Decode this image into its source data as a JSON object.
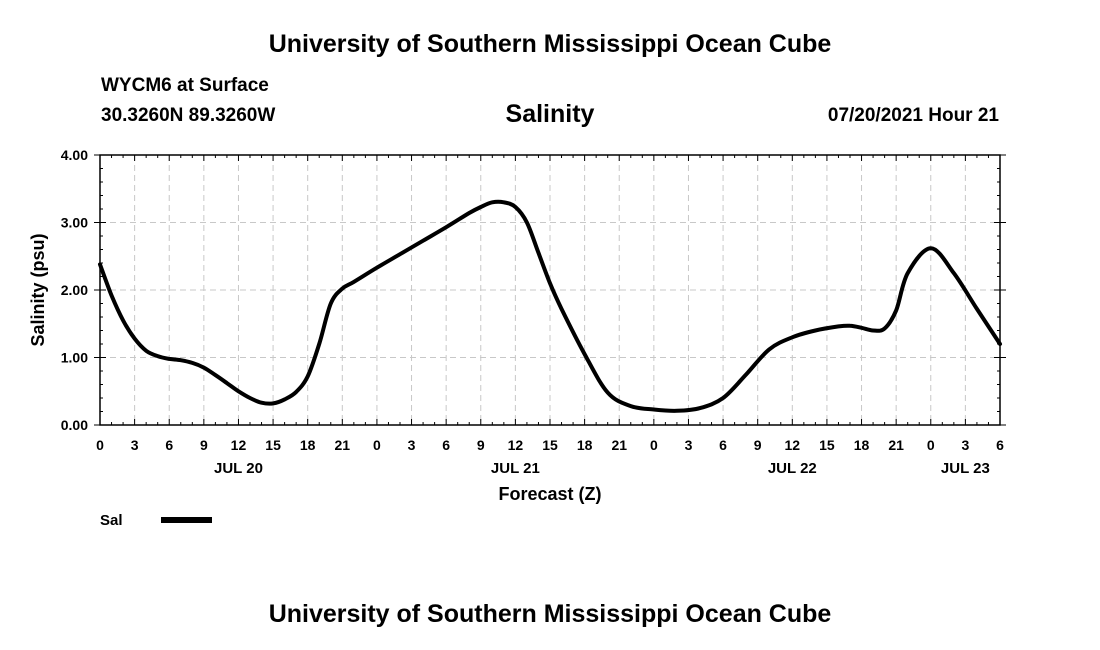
{
  "page": {
    "top_title": "University of Southern Mississippi Ocean Cube",
    "bottom_title": "University of Southern Mississippi Ocean Cube",
    "station": "WYCM6 at Surface",
    "coords": "30.3260N  89.3260W",
    "datetime": "07/20/2021 Hour 21"
  },
  "chart_data": {
    "type": "line",
    "title": "Salinity",
    "xlabel": "Forecast (Z)",
    "ylabel": "Salinity (psu)",
    "ylim": [
      0,
      4
    ],
    "y_ticks": [
      "0.00",
      "1.00",
      "2.00",
      "3.00",
      "4.00"
    ],
    "x_range_hours": [
      0,
      78
    ],
    "x_tick_labels": [
      "0",
      "3",
      "6",
      "9",
      "12",
      "15",
      "18",
      "21",
      "0",
      "3",
      "6",
      "9",
      "12",
      "15",
      "18",
      "21",
      "0",
      "3",
      "6",
      "9",
      "12",
      "15",
      "18",
      "21",
      "0",
      "3",
      "6"
    ],
    "date_labels": [
      {
        "label": "JUL 20",
        "hour": 12
      },
      {
        "label": "JUL 21",
        "hour": 36
      },
      {
        "label": "JUL 22",
        "hour": 60
      },
      {
        "label": "JUL 23",
        "hour": 75
      }
    ],
    "grid": true,
    "legend": [
      {
        "name": "Sal",
        "color": "#000000"
      }
    ],
    "series": [
      {
        "name": "Sal",
        "color": "#000000",
        "x": [
          0,
          1,
          2,
          3,
          4,
          5,
          6,
          7,
          8,
          9,
          10,
          11,
          12,
          13,
          14,
          15,
          16,
          17,
          18,
          19,
          20,
          21,
          22,
          24,
          26,
          28,
          30,
          32,
          33,
          34,
          35,
          36,
          37,
          38,
          39,
          40,
          42,
          44,
          46,
          48,
          50,
          52,
          54,
          56,
          58,
          60,
          62,
          64,
          65,
          66,
          67,
          68,
          69,
          70,
          72,
          74,
          76,
          78
        ],
        "values": [
          2.38,
          1.92,
          1.55,
          1.28,
          1.1,
          1.02,
          0.98,
          0.96,
          0.92,
          0.85,
          0.74,
          0.62,
          0.5,
          0.4,
          0.33,
          0.32,
          0.38,
          0.49,
          0.72,
          1.2,
          1.8,
          2.02,
          2.12,
          2.33,
          2.53,
          2.73,
          2.93,
          3.14,
          3.23,
          3.3,
          3.3,
          3.23,
          3.0,
          2.55,
          2.1,
          1.72,
          1.05,
          0.48,
          0.28,
          0.23,
          0.21,
          0.25,
          0.4,
          0.75,
          1.12,
          1.3,
          1.4,
          1.46,
          1.47,
          1.44,
          1.4,
          1.43,
          1.7,
          2.25,
          2.62,
          2.25,
          1.72,
          1.2
        ]
      }
    ]
  }
}
